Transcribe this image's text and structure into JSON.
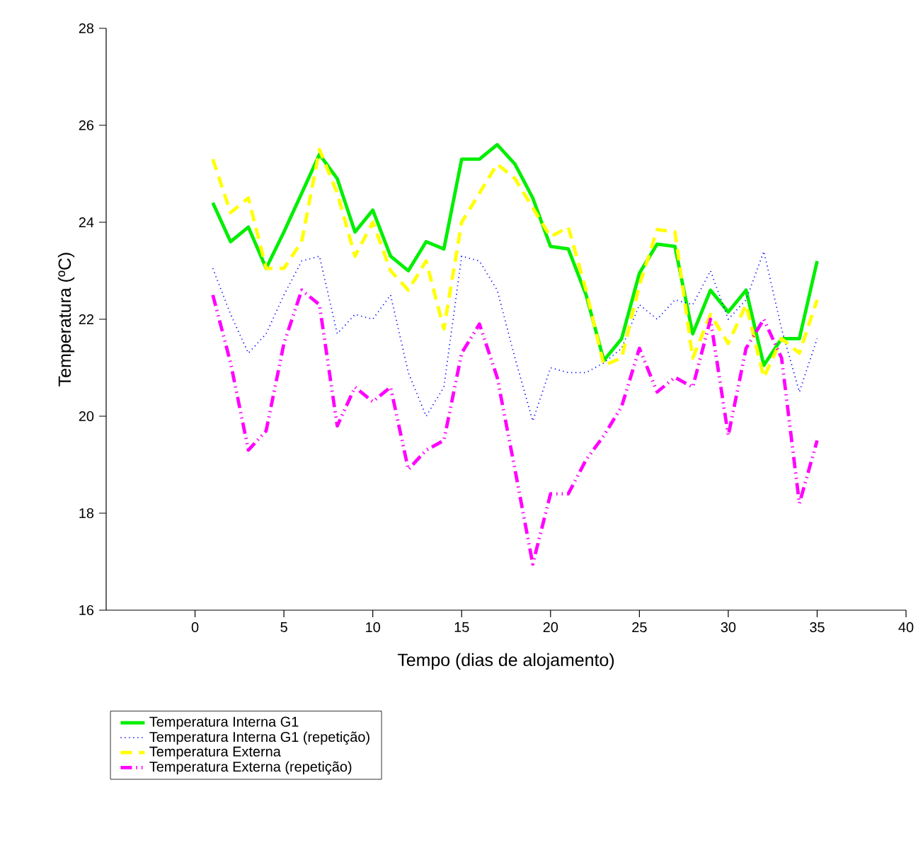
{
  "chart_data": {
    "type": "line",
    "xlabel": "Tempo (dias de alojamento)",
    "ylabel": "Temperatura (ºC)",
    "x": [
      1,
      2,
      3,
      4,
      5,
      6,
      7,
      8,
      9,
      10,
      11,
      12,
      13,
      14,
      15,
      16,
      17,
      18,
      19,
      20,
      21,
      22,
      23,
      24,
      25,
      26,
      27,
      28,
      29,
      30,
      31,
      32,
      33,
      34,
      35
    ],
    "series": [
      {
        "name": "Temperatura Interna G1",
        "color": "#00ee00",
        "line_style": "solid",
        "values": [
          24.4,
          23.6,
          23.9,
          23.05,
          23.8,
          24.6,
          25.4,
          24.9,
          23.8,
          24.25,
          23.3,
          23.0,
          23.6,
          23.45,
          25.3,
          25.3,
          25.6,
          25.2,
          24.5,
          23.5,
          23.45,
          22.5,
          21.15,
          21.6,
          22.95,
          23.55,
          23.5,
          21.7,
          22.6,
          22.15,
          22.6,
          21.05,
          21.6,
          21.6,
          23.2
        ]
      },
      {
        "name": "Temperatura Interna G1 (repetição)",
        "color": "#0000ff",
        "line_style": "dotted",
        "values": [
          23.05,
          22.1,
          21.3,
          21.7,
          22.5,
          23.2,
          23.3,
          21.7,
          22.1,
          22.0,
          22.5,
          20.9,
          20.0,
          20.6,
          23.3,
          23.2,
          22.6,
          21.2,
          19.9,
          21.0,
          20.9,
          20.9,
          21.1,
          21.4,
          22.3,
          22.0,
          22.4,
          22.3,
          23.0,
          22.0,
          22.4,
          23.4,
          21.8,
          20.5,
          21.6
        ]
      },
      {
        "name": "Temperatura Externa",
        "color": "#ffff00",
        "line_style": "dashed",
        "values": [
          25.3,
          24.2,
          24.5,
          23.05,
          23.05,
          23.6,
          25.5,
          24.6,
          23.3,
          24.0,
          23.0,
          22.6,
          23.2,
          21.8,
          24.0,
          24.6,
          25.2,
          24.9,
          24.3,
          23.7,
          23.9,
          22.6,
          21.05,
          21.2,
          22.7,
          23.85,
          23.8,
          21.2,
          22.1,
          21.5,
          22.3,
          20.8,
          21.6,
          21.3,
          22.4
        ]
      },
      {
        "name": "Temperatura Externa (repetição)",
        "color": "#ff00ff",
        "line_style": "dashdot",
        "values": [
          22.5,
          21.1,
          19.3,
          19.7,
          21.5,
          22.6,
          22.3,
          19.8,
          20.6,
          20.3,
          20.6,
          18.9,
          19.3,
          19.5,
          21.3,
          21.9,
          20.8,
          18.9,
          16.95,
          18.4,
          18.4,
          19.1,
          19.6,
          20.2,
          21.4,
          20.5,
          20.8,
          20.6,
          22.0,
          19.6,
          21.4,
          22.0,
          21.2,
          18.2,
          19.5
        ]
      }
    ],
    "xlim": [
      -5,
      40
    ],
    "xticks": [
      0,
      5,
      10,
      15,
      20,
      25,
      30,
      35,
      40
    ],
    "ylim": [
      16,
      28
    ],
    "yticks": [
      16,
      18,
      20,
      22,
      24,
      26,
      28
    ],
    "grid": false,
    "legend": "bottom",
    "marker": "none"
  }
}
